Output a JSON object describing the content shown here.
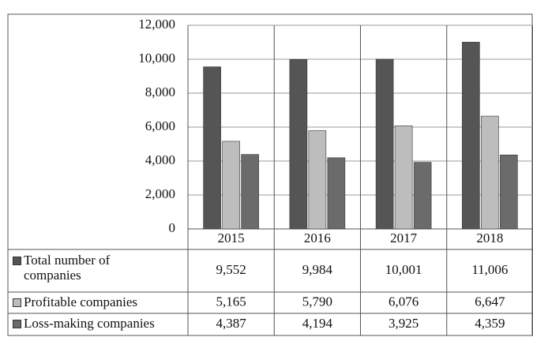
{
  "chart_data": {
    "type": "bar",
    "categories": [
      "2015",
      "2016",
      "2017",
      "2018"
    ],
    "series": [
      {
        "name": "Total number of companies",
        "color": "#555555",
        "values": [
          9552,
          9984,
          10001,
          11006
        ],
        "value_labels": [
          "9,552",
          "9,984",
          "10,001",
          "11,006"
        ]
      },
      {
        "name": "Profitable companies",
        "color": "#bdbdbd",
        "values": [
          5165,
          5790,
          6076,
          6647
        ],
        "value_labels": [
          "5,165",
          "5,790",
          "6,076",
          "6,647"
        ]
      },
      {
        "name": "Loss-making companies",
        "color": "#6b6b6b",
        "values": [
          4387,
          4194,
          3925,
          4359
        ],
        "value_labels": [
          "4,387",
          "4,194",
          "3,925",
          "4,359"
        ]
      }
    ],
    "ylim": [
      0,
      12000
    ],
    "yticks": [
      0,
      {
        "value": 2000,
        "label": "2,000"
      },
      {
        "value": 4000,
        "label": "4,000"
      },
      {
        "value": 6000,
        "label": "6,000"
      },
      {
        "value": 8000,
        "label": "8,000"
      },
      {
        "value": 10000,
        "label": "10,000"
      },
      {
        "value": 12000,
        "label": "12,000"
      }
    ],
    "grid": true
  }
}
